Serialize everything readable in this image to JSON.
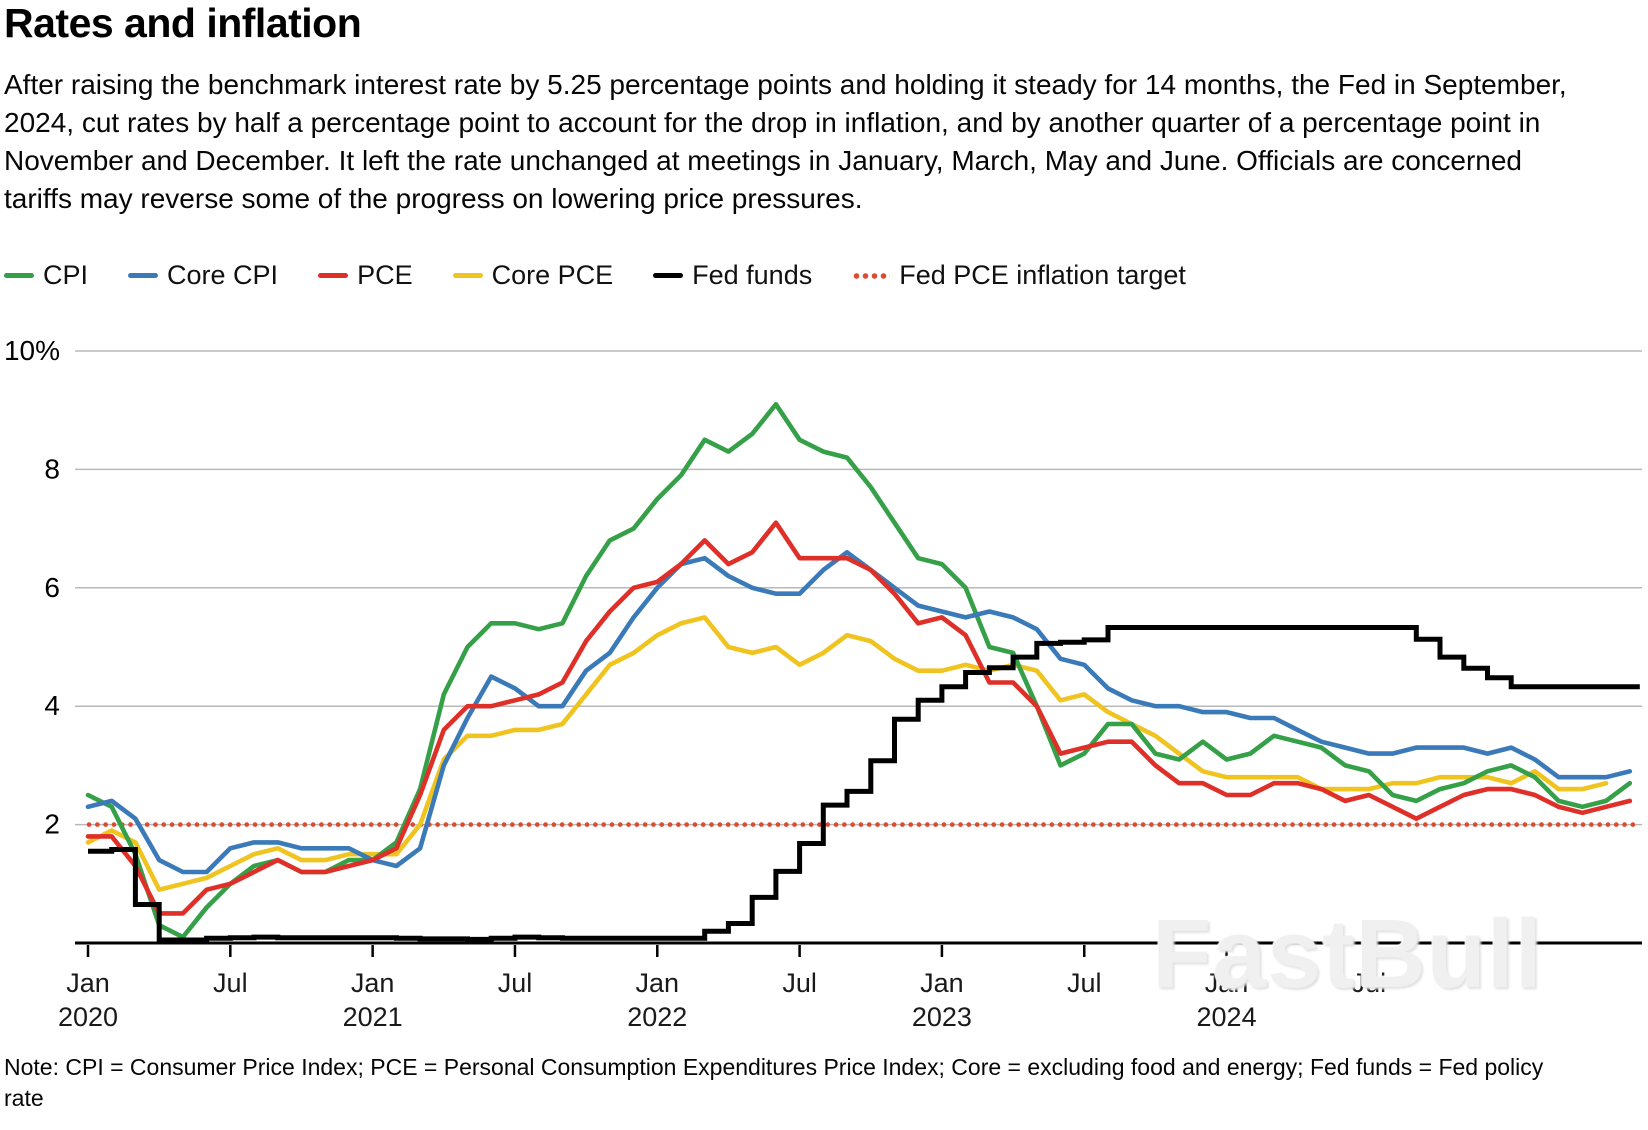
{
  "title": "Rates and inflation",
  "subtitle": "After raising the benchmark interest rate by 5.25 percentage points and holding it steady for 14 months, the Fed in September, 2024, cut rates by half a percentage point to account for the drop in inflation, and by another quarter of a percentage point in November and December. It left the rate unchanged at meetings in January, March, May and June. Officials are concerned tariffs may reverse some of the progress on lowering price pressures.",
  "note": "Note: CPI = Consumer Price Index; PCE = Personal Consumption Expenditures Price Index; Core = excluding food and energy; Fed funds = Fed policy rate",
  "watermark": "FastBull",
  "colors": {
    "cpi": "#35a048",
    "core_cpi": "#3a7ab8",
    "pce": "#de2f28",
    "core_pce": "#f0c420",
    "fed_funds": "#000000",
    "target": "#de4a2e",
    "grid": "#b9b9b9",
    "axis": "#000000",
    "tick_label": "#1a1a1a"
  },
  "legend": {
    "items": [
      {
        "label": "CPI",
        "color": "#35a048",
        "style": "line"
      },
      {
        "label": "Core CPI",
        "color": "#3a7ab8",
        "style": "line"
      },
      {
        "label": "PCE",
        "color": "#de2f28",
        "style": "line"
      },
      {
        "label": "Core PCE",
        "color": "#f0c420",
        "style": "line"
      },
      {
        "label": "Fed funds",
        "color": "#000000",
        "style": "line"
      },
      {
        "label": "Fed PCE inflation target",
        "color": "#de4a2e",
        "style": "dotted"
      }
    ]
  },
  "chart_data": {
    "type": "line",
    "x_unit": "month",
    "x_start": "Jan 2020",
    "ylim": [
      0,
      10
    ],
    "grid": true,
    "y_ticks": [
      {
        "value": 2,
        "label": "2"
      },
      {
        "value": 4,
        "label": "4"
      },
      {
        "value": 6,
        "label": "6"
      },
      {
        "value": 8,
        "label": "8"
      },
      {
        "value": 10,
        "label": "10%"
      }
    ],
    "x_ticks": [
      {
        "index": 0,
        "month": "Jan",
        "year": "2020"
      },
      {
        "index": 6,
        "month": "Jul",
        "year": ""
      },
      {
        "index": 12,
        "month": "Jan",
        "year": "2021"
      },
      {
        "index": 18,
        "month": "Jul",
        "year": ""
      },
      {
        "index": 24,
        "month": "Jan",
        "year": "2022"
      },
      {
        "index": 30,
        "month": "Jul",
        "year": ""
      },
      {
        "index": 36,
        "month": "Jan",
        "year": "2023"
      },
      {
        "index": 42,
        "month": "Jul",
        "year": ""
      },
      {
        "index": 48,
        "month": "Jan",
        "year": "2024"
      },
      {
        "index": 54,
        "month": "Jul",
        "year": ""
      }
    ],
    "target": {
      "name": "Fed PCE inflation target",
      "value": 2,
      "color": "#de4a2e",
      "style": "dotted"
    },
    "series": [
      {
        "name": "Core PCE",
        "color": "#f0c420",
        "style": "solid",
        "values": [
          1.7,
          1.9,
          1.7,
          0.9,
          1.0,
          1.1,
          1.3,
          1.5,
          1.6,
          1.4,
          1.4,
          1.5,
          1.5,
          1.5,
          2.0,
          3.1,
          3.5,
          3.5,
          3.6,
          3.6,
          3.7,
          4.2,
          4.7,
          4.9,
          5.2,
          5.4,
          5.5,
          5.0,
          4.9,
          5.0,
          4.7,
          4.9,
          5.2,
          5.1,
          4.8,
          4.6,
          4.6,
          4.7,
          4.6,
          4.7,
          4.6,
          4.1,
          4.2,
          3.9,
          3.7,
          3.5,
          3.2,
          2.9,
          2.8,
          2.8,
          2.8,
          2.8,
          2.6,
          2.6,
          2.6,
          2.7,
          2.7,
          2.8,
          2.8,
          2.8,
          2.7,
          2.9,
          2.6,
          2.6,
          2.7
        ]
      },
      {
        "name": "CPI",
        "color": "#35a048",
        "style": "solid",
        "values": [
          2.5,
          2.3,
          1.5,
          0.3,
          0.1,
          0.6,
          1.0,
          1.3,
          1.4,
          1.2,
          1.2,
          1.4,
          1.4,
          1.7,
          2.6,
          4.2,
          5.0,
          5.4,
          5.4,
          5.3,
          5.4,
          6.2,
          6.8,
          7.0,
          7.5,
          7.9,
          8.5,
          8.3,
          8.6,
          9.1,
          8.5,
          8.3,
          8.2,
          7.7,
          7.1,
          6.5,
          6.4,
          6.0,
          5.0,
          4.9,
          4.0,
          3.0,
          3.2,
          3.7,
          3.7,
          3.2,
          3.1,
          3.4,
          3.1,
          3.2,
          3.5,
          3.4,
          3.3,
          3.0,
          2.9,
          2.5,
          2.4,
          2.6,
          2.7,
          2.9,
          3.0,
          2.8,
          2.4,
          2.3,
          2.4,
          2.7
        ]
      },
      {
        "name": "Core CPI",
        "color": "#3a7ab8",
        "style": "solid",
        "values": [
          2.3,
          2.4,
          2.1,
          1.4,
          1.2,
          1.2,
          1.6,
          1.7,
          1.7,
          1.6,
          1.6,
          1.6,
          1.4,
          1.3,
          1.6,
          3.0,
          3.8,
          4.5,
          4.3,
          4.0,
          4.0,
          4.6,
          4.9,
          5.5,
          6.0,
          6.4,
          6.5,
          6.2,
          6.0,
          5.9,
          5.9,
          6.3,
          6.6,
          6.3,
          6.0,
          5.7,
          5.6,
          5.5,
          5.6,
          5.5,
          5.3,
          4.8,
          4.7,
          4.3,
          4.1,
          4.0,
          4.0,
          3.9,
          3.9,
          3.8,
          3.8,
          3.6,
          3.4,
          3.3,
          3.2,
          3.2,
          3.3,
          3.3,
          3.3,
          3.2,
          3.3,
          3.1,
          2.8,
          2.8,
          2.8,
          2.9
        ]
      },
      {
        "name": "PCE",
        "color": "#de2f28",
        "style": "solid",
        "values": [
          1.8,
          1.8,
          1.3,
          0.5,
          0.5,
          0.9,
          1.0,
          1.2,
          1.4,
          1.2,
          1.2,
          1.3,
          1.4,
          1.6,
          2.5,
          3.6,
          4.0,
          4.0,
          4.1,
          4.2,
          4.4,
          5.1,
          5.6,
          6.0,
          6.1,
          6.4,
          6.8,
          6.4,
          6.6,
          7.1,
          6.5,
          6.5,
          6.5,
          6.3,
          5.9,
          5.4,
          5.5,
          5.2,
          4.4,
          4.4,
          4.0,
          3.2,
          3.3,
          3.4,
          3.4,
          3.0,
          2.7,
          2.7,
          2.5,
          2.5,
          2.7,
          2.7,
          2.6,
          2.4,
          2.5,
          2.3,
          2.1,
          2.3,
          2.5,
          2.6,
          2.6,
          2.5,
          2.3,
          2.2,
          2.3,
          2.4
        ]
      },
      {
        "name": "Fed funds",
        "color": "#000000",
        "style": "step",
        "values": [
          1.55,
          1.58,
          0.65,
          0.05,
          0.05,
          0.08,
          0.09,
          0.1,
          0.09,
          0.09,
          0.09,
          0.09,
          0.09,
          0.08,
          0.07,
          0.07,
          0.06,
          0.08,
          0.1,
          0.09,
          0.08,
          0.08,
          0.08,
          0.08,
          0.08,
          0.08,
          0.2,
          0.33,
          0.77,
          1.21,
          1.68,
          2.33,
          2.56,
          3.08,
          3.78,
          4.1,
          4.33,
          4.57,
          4.65,
          4.83,
          5.06,
          5.08,
          5.12,
          5.33,
          5.33,
          5.33,
          5.33,
          5.33,
          5.33,
          5.33,
          5.33,
          5.33,
          5.33,
          5.33,
          5.33,
          5.33,
          5.13,
          4.83,
          4.64,
          4.48,
          4.33,
          4.33,
          4.33,
          4.33,
          4.33,
          4.33
        ]
      }
    ]
  }
}
